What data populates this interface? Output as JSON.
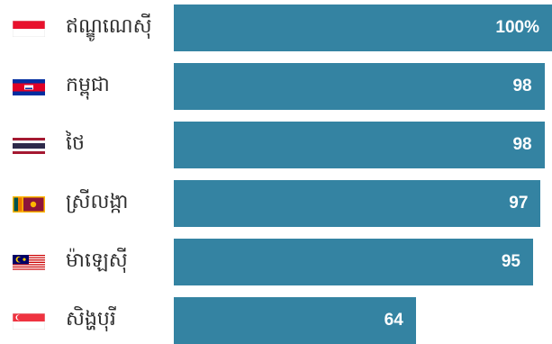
{
  "chart_data": {
    "type": "bar",
    "orientation": "horizontal",
    "categories": [
      "ឥណ្ឌូណេស៊ី",
      "កម្ពុជា",
      "ថៃ",
      "ស្រីលង្កា",
      "ម៉ាឡេស៊ី",
      "សិង្ហបុរី"
    ],
    "values": [
      100,
      98,
      98,
      97,
      95,
      64
    ],
    "value_labels": [
      "100%",
      "98",
      "98",
      "97",
      "95",
      "64"
    ],
    "xlim": [
      0,
      100
    ],
    "bar_color": "#3483a2",
    "value_label_color": "#ffffff",
    "flags": [
      "indonesia-flag",
      "cambodia-flag",
      "thailand-flag",
      "sri-lanka-flag",
      "malaysia-flag",
      "singapore-flag"
    ],
    "title": "",
    "xlabel": "",
    "ylabel": "",
    "grid": false,
    "legend": "none"
  }
}
